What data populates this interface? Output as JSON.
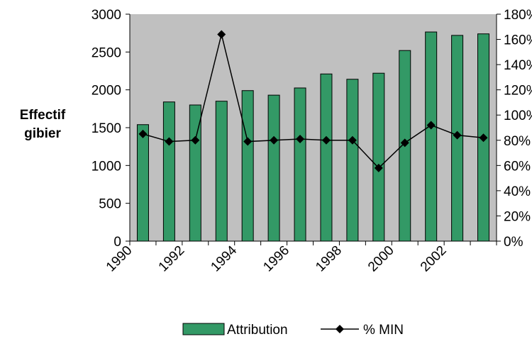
{
  "chart_data": {
    "type": "bar+line",
    "y_label": "Effectif gibier",
    "categories": [
      "1990",
      null,
      "1992",
      null,
      "1994",
      null,
      "1996",
      null,
      "1998",
      null,
      "2000",
      null,
      "2002",
      null
    ],
    "series": [
      {
        "name": "Attribution",
        "type": "bar",
        "color": "#339966",
        "values": [
          1540,
          1840,
          1800,
          1850,
          1990,
          1930,
          2025,
          2210,
          2140,
          2220,
          2520,
          2765,
          2720,
          2740
        ]
      },
      {
        "name": "% MIN",
        "type": "line",
        "axis": "y2",
        "color": "#000000",
        "values": [
          85,
          79,
          80,
          164,
          79,
          80,
          81,
          80,
          80,
          58,
          78,
          92,
          84,
          82
        ]
      }
    ],
    "ylim": [
      0,
      3000
    ],
    "yticks": [
      0,
      500,
      1000,
      1500,
      2000,
      2500,
      3000
    ],
    "y2lim": [
      0,
      180
    ],
    "y2ticks": [
      {
        "value": 0,
        "label": "0%"
      },
      {
        "value": 20,
        "label": "20%"
      },
      {
        "value": 40,
        "label": "40%"
      },
      {
        "value": 60,
        "label": "60%"
      },
      {
        "value": 80,
        "label": "80%"
      },
      {
        "value": 100,
        "label": "100%"
      },
      {
        "value": 120,
        "label": "120%"
      },
      {
        "value": 140,
        "label": "140%"
      },
      {
        "value": 160,
        "label": "160%"
      },
      {
        "value": 180,
        "label": "180%"
      }
    ],
    "plot_background": "#c0c0c0",
    "legend": "bottom"
  }
}
